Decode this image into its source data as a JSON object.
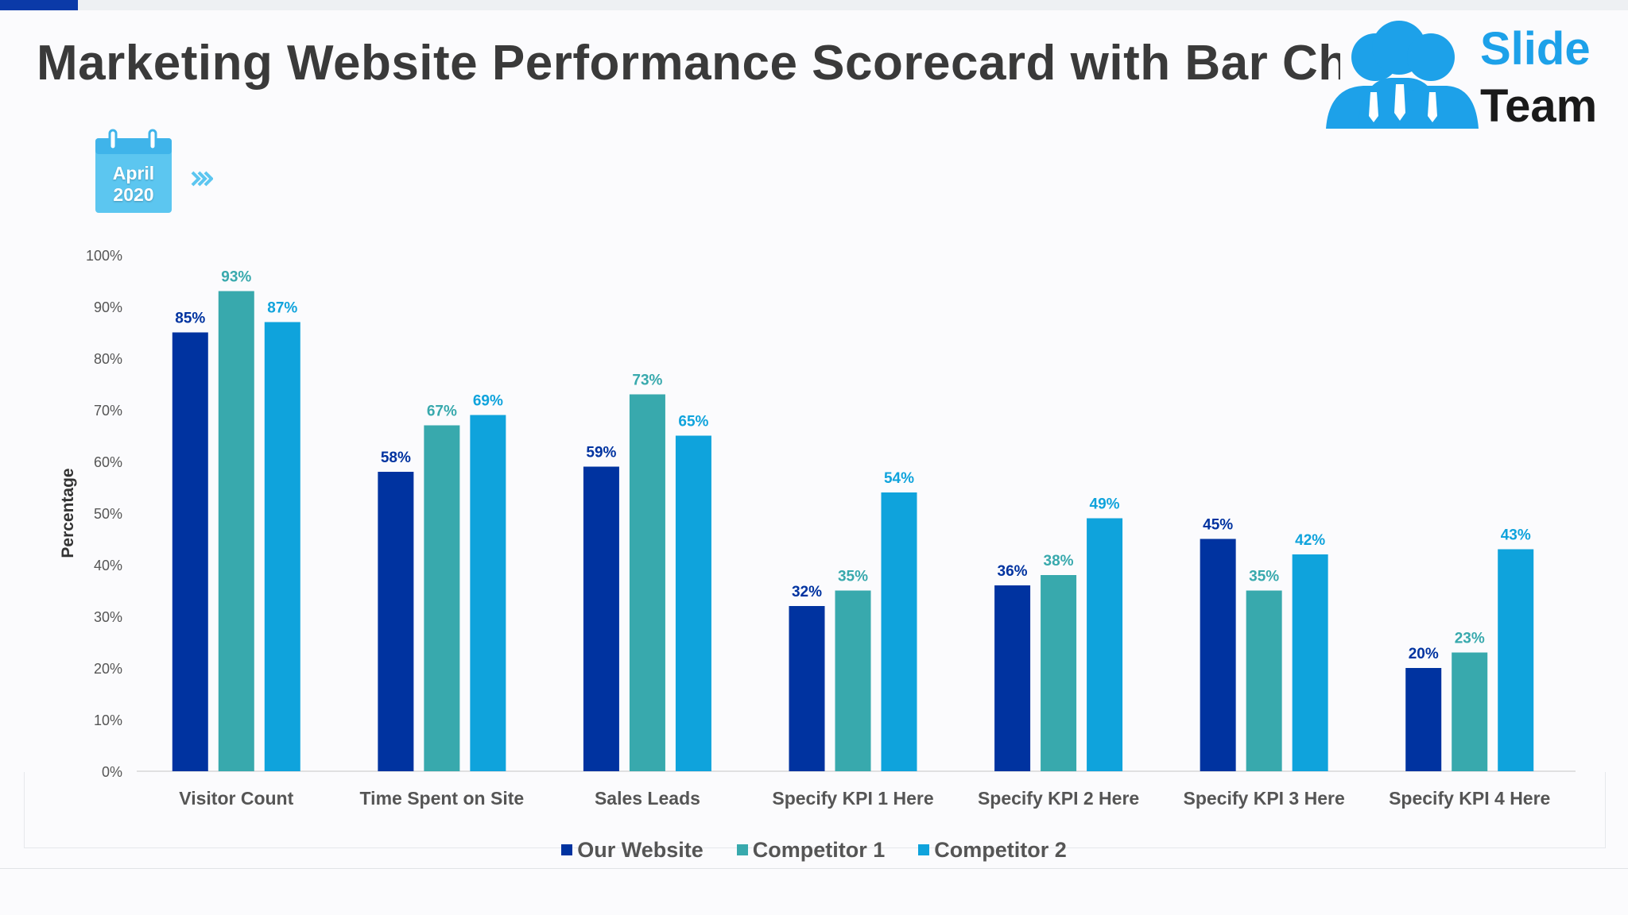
{
  "slide": {
    "title": "Marketing Website Performance Scorecard with Bar Chart",
    "calendar": {
      "month": "April",
      "year": "2020"
    },
    "logo": {
      "line1": "Slide",
      "line2": "Team"
    }
  },
  "colors": {
    "our_website": "#0033a0",
    "competitor_1": "#38a9ad",
    "competitor_2": "#0fa3dc",
    "title": "#3a3a3a",
    "calendar": "#5cc6f0",
    "logo_blue": "#1da1e9"
  },
  "icons": [
    "calendar-icon",
    "double-chevron-right-icon",
    "team-logo-icon"
  ],
  "chart_data": {
    "type": "bar",
    "ylabel": "Percentage",
    "xlabel": "",
    "ylim": [
      0,
      100
    ],
    "yticks": [
      "0%",
      "10%",
      "20%",
      "30%",
      "40%",
      "50%",
      "60%",
      "70%",
      "80%",
      "90%",
      "100%"
    ],
    "grid": false,
    "legend_position": "bottom",
    "categories": [
      "Visitor Count",
      "Time Spent on Site",
      "Sales Leads",
      "Specify KPI 1 Here",
      "Specify KPI 2 Here",
      "Specify KPI 3 Here",
      "Specify KPI 4 Here"
    ],
    "series": [
      {
        "name": "Our Website",
        "values": [
          85,
          58,
          59,
          32,
          36,
          45,
          20
        ],
        "color": "#0033a0"
      },
      {
        "name": "Competitor 1",
        "values": [
          93,
          67,
          73,
          35,
          38,
          35,
          23
        ],
        "color": "#38a9ad"
      },
      {
        "name": "Competitor 2",
        "values": [
          87,
          69,
          65,
          54,
          49,
          42,
          43
        ],
        "color": "#0fa3dc"
      }
    ],
    "value_format": "{v}%"
  }
}
